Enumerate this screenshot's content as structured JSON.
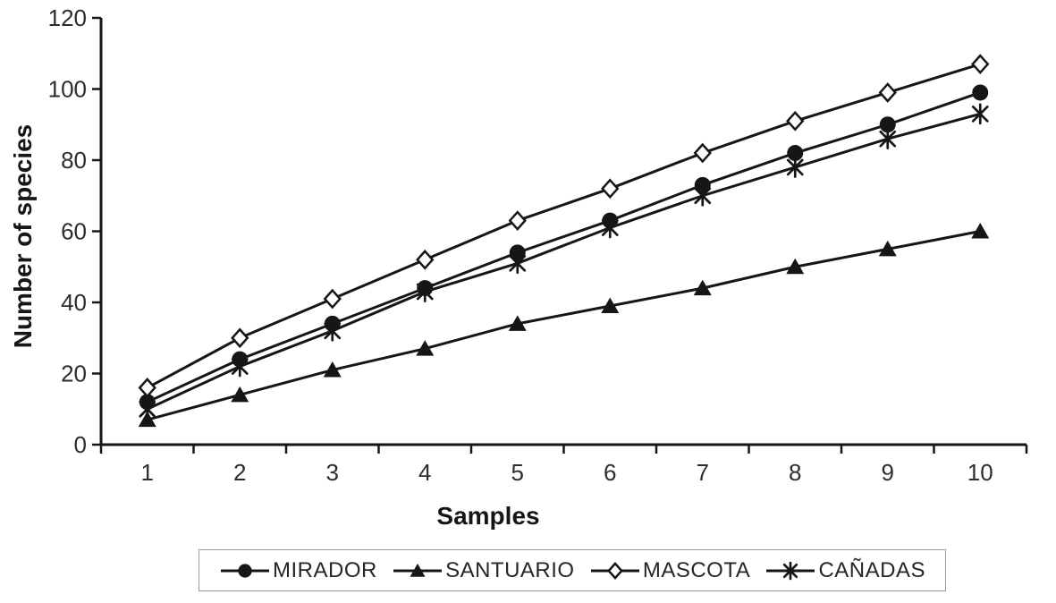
{
  "figure": {
    "background": "#ffffff",
    "ink_color": "#161616",
    "tick_label_color": "#2d2d2d",
    "legend_border_color": "#9c9c9c"
  },
  "chart_data": {
    "type": "line",
    "xlabel": "Samples",
    "ylabel": "Number of species",
    "x": [
      1,
      2,
      3,
      4,
      5,
      6,
      7,
      8,
      9,
      10
    ],
    "ylim": [
      0,
      120
    ],
    "yticks": [
      0,
      20,
      40,
      60,
      80,
      100,
      120
    ],
    "grid": false,
    "legend_position": "bottom",
    "series": [
      {
        "name": "MIRADOR",
        "slug": "mirador",
        "marker": "filled-circle-icon",
        "values": [
          12,
          24,
          34,
          44,
          54,
          63,
          73,
          82,
          90,
          99
        ]
      },
      {
        "name": "SANTUARIO",
        "slug": "santuario",
        "marker": "filled-triangle-icon",
        "values": [
          7,
          14,
          21,
          27,
          34,
          39,
          44,
          50,
          55,
          60
        ]
      },
      {
        "name": "MASCOTA",
        "slug": "mascota",
        "marker": "open-diamond-icon",
        "values": [
          16,
          30,
          41,
          52,
          63,
          72,
          82,
          91,
          99,
          107
        ]
      },
      {
        "name": "CAÑADAS",
        "slug": "canadas",
        "marker": "asterisk-icon",
        "values": [
          10,
          22,
          32,
          43,
          51,
          61,
          70,
          78,
          86,
          93
        ]
      }
    ]
  }
}
